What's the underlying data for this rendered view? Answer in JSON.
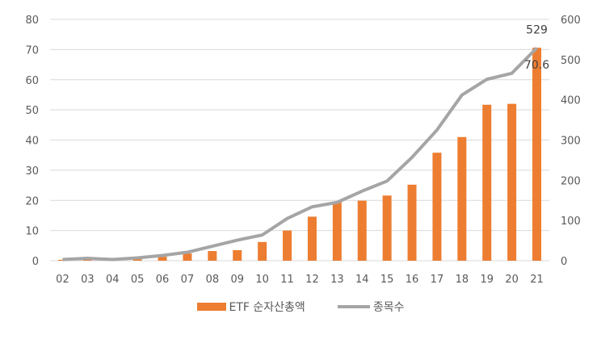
{
  "chart_data": {
    "type": "bar+line",
    "title": "",
    "categories": [
      "02",
      "03",
      "04",
      "05",
      "06",
      "07",
      "08",
      "09",
      "10",
      "11",
      "12",
      "13",
      "14",
      "15",
      "16",
      "17",
      "18",
      "19",
      "20",
      "21"
    ],
    "series": [
      {
        "name": "ETF 순자산총액",
        "type": "bar",
        "axis": "left",
        "color": "#ED7D31",
        "values": [
          0.3,
          0.4,
          0.3,
          0.5,
          1.3,
          2.4,
          3.2,
          3.5,
          6.2,
          10.0,
          14.6,
          19.4,
          19.9,
          21.6,
          25.2,
          35.8,
          41.0,
          51.7,
          52.0,
          70.6
        ]
      },
      {
        "name": "종목수",
        "type": "line",
        "axis": "right",
        "color": "#A5A5A5",
        "values": [
          3,
          6,
          3,
          7,
          13,
          21,
          36,
          51,
          64,
          105,
          134,
          145,
          173,
          198,
          257,
          325,
          412,
          451,
          466,
          529
        ]
      }
    ],
    "left_axis": {
      "ylim": [
        0,
        80
      ],
      "ticks": [
        "0",
        "10",
        "20",
        "30",
        "40",
        "50",
        "60",
        "70",
        "80"
      ]
    },
    "right_axis": {
      "ylim": [
        0,
        600
      ],
      "ticks": [
        "0",
        "100",
        "200",
        "300",
        "400",
        "500",
        "600"
      ]
    },
    "annotations": [
      {
        "text": "529",
        "series": "종목수",
        "category": "21"
      },
      {
        "text": "70.6",
        "series": "ETF 순자산총액",
        "category": "21"
      }
    ],
    "grid": true,
    "legend_position": "bottom"
  },
  "legend": {
    "bar_label": "ETF 순자산총액",
    "line_label": "종목수"
  }
}
